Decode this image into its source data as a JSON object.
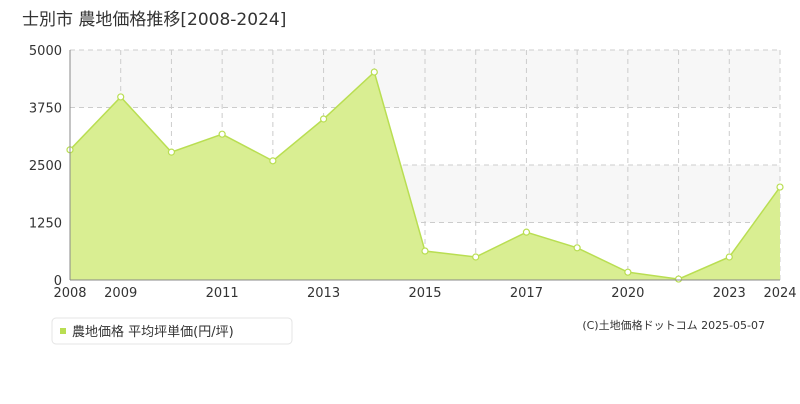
{
  "chart_data": {
    "type": "area",
    "title": "士別市 農地価格推移[2008-2024]",
    "categories": [
      "2008",
      "2009",
      null,
      "2011",
      null,
      "2013",
      null,
      "2015",
      null,
      "2017",
      null,
      "2020",
      null,
      "2023",
      "2024"
    ],
    "series": [
      {
        "name": "農地価格 平均坪単価(円/坪)",
        "color": "#b9de52",
        "values": [
          2830,
          3980,
          2780,
          3170,
          2590,
          3500,
          4520,
          630,
          500,
          1040,
          700,
          170,
          20,
          500,
          2020
        ]
      }
    ],
    "ylim": [
      0,
      5000
    ],
    "yticks": [
      0,
      1250,
      2500,
      3750,
      5000
    ],
    "grid": true,
    "copyright": "(C)土地価格ドットコム 2025-05-07"
  }
}
